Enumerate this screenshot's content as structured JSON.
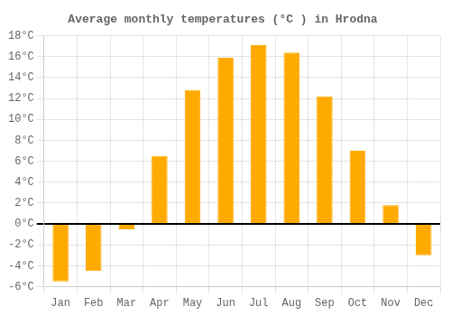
{
  "chart_data": {
    "type": "bar",
    "title": "Average monthly temperatures (°C ) in Hrodna",
    "categories": [
      "Jan",
      "Feb",
      "Mar",
      "Apr",
      "May",
      "Jun",
      "Jul",
      "Aug",
      "Sep",
      "Oct",
      "Nov",
      "Dec"
    ],
    "values": [
      -5.5,
      -4.5,
      -0.5,
      6.5,
      12.8,
      15.9,
      17.1,
      16.4,
      12.2,
      7.0,
      1.8,
      -3.0
    ],
    "color": "#FFAA00",
    "ylim": [
      -6,
      18
    ],
    "yticks": [
      {
        "value": -6,
        "label": "-6°C"
      },
      {
        "value": -4,
        "label": "-4°C"
      },
      {
        "value": -2,
        "label": "-2°C"
      },
      {
        "value": 0,
        "label": "0°C"
      },
      {
        "value": 2,
        "label": "2°C"
      },
      {
        "value": 4,
        "label": "4°C"
      },
      {
        "value": 6,
        "label": "6°C"
      },
      {
        "value": 8,
        "label": "8°C"
      },
      {
        "value": 10,
        "label": "10°C"
      },
      {
        "value": 12,
        "label": "12°C"
      },
      {
        "value": 14,
        "label": "14°C"
      },
      {
        "value": 16,
        "label": "16°C"
      },
      {
        "value": 18,
        "label": "18°C"
      }
    ],
    "grid": true
  }
}
